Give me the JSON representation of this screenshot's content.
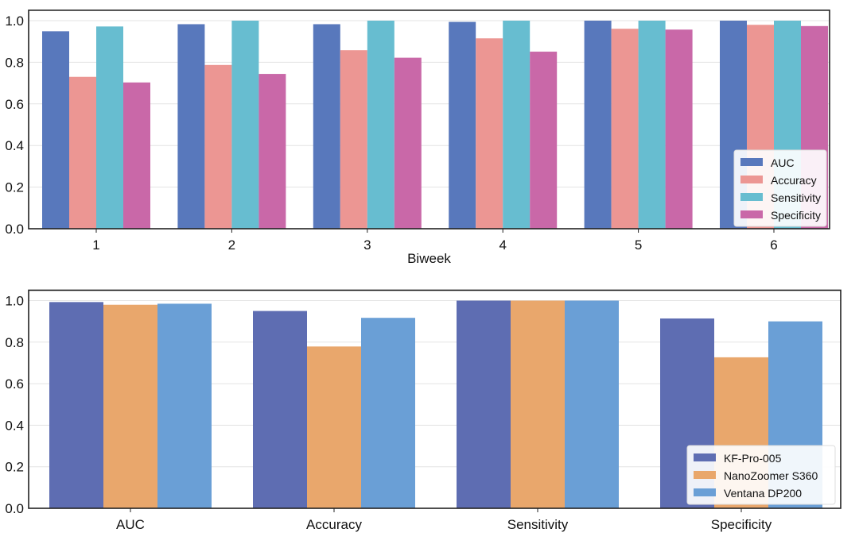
{
  "chart_data": [
    {
      "type": "bar",
      "title": "",
      "xlabel": "Biweek",
      "ylabel": "",
      "ylim": [
        0,
        1.05
      ],
      "yticks": [
        "0.0",
        "0.2",
        "0.4",
        "0.6",
        "0.8",
        "1.0"
      ],
      "grid": true,
      "legend_position": "bottom-right",
      "categories": [
        "1",
        "2",
        "3",
        "4",
        "5",
        "6"
      ],
      "series": [
        {
          "name": "AUC",
          "color": "#5878BC",
          "values": [
            0.949,
            0.983,
            0.983,
            0.994,
            1.0,
            1.0
          ]
        },
        {
          "name": "Accuracy",
          "color": "#EC9693",
          "values": [
            0.73,
            0.787,
            0.858,
            0.915,
            0.961,
            0.98
          ]
        },
        {
          "name": "Sensitivity",
          "color": "#67BDD0",
          "values": [
            0.972,
            1.0,
            1.0,
            1.0,
            1.0,
            1.0
          ]
        },
        {
          "name": "Specificity",
          "color": "#C968A8",
          "values": [
            0.703,
            0.744,
            0.822,
            0.851,
            0.957,
            0.974
          ]
        }
      ]
    },
    {
      "type": "bar",
      "title": "",
      "xlabel": "",
      "ylabel": "",
      "ylim": [
        0,
        1.05
      ],
      "yticks": [
        "0.0",
        "0.2",
        "0.4",
        "0.6",
        "0.8",
        "1.0"
      ],
      "grid": true,
      "legend_position": "bottom-right",
      "categories": [
        "AUC",
        "Accuracy",
        "Sensitivity",
        "Specificity"
      ],
      "series": [
        {
          "name": "KF-Pro-005",
          "color": "#5E6DB2",
          "values": [
            0.993,
            0.95,
            1.0,
            0.914
          ]
        },
        {
          "name": "NanoZoomer S360",
          "color": "#E9A76C",
          "values": [
            0.98,
            0.779,
            1.0,
            0.727
          ]
        },
        {
          "name": "Ventana DP200",
          "color": "#6A9FD6",
          "values": [
            0.985,
            0.917,
            1.0,
            0.9
          ]
        }
      ]
    }
  ]
}
